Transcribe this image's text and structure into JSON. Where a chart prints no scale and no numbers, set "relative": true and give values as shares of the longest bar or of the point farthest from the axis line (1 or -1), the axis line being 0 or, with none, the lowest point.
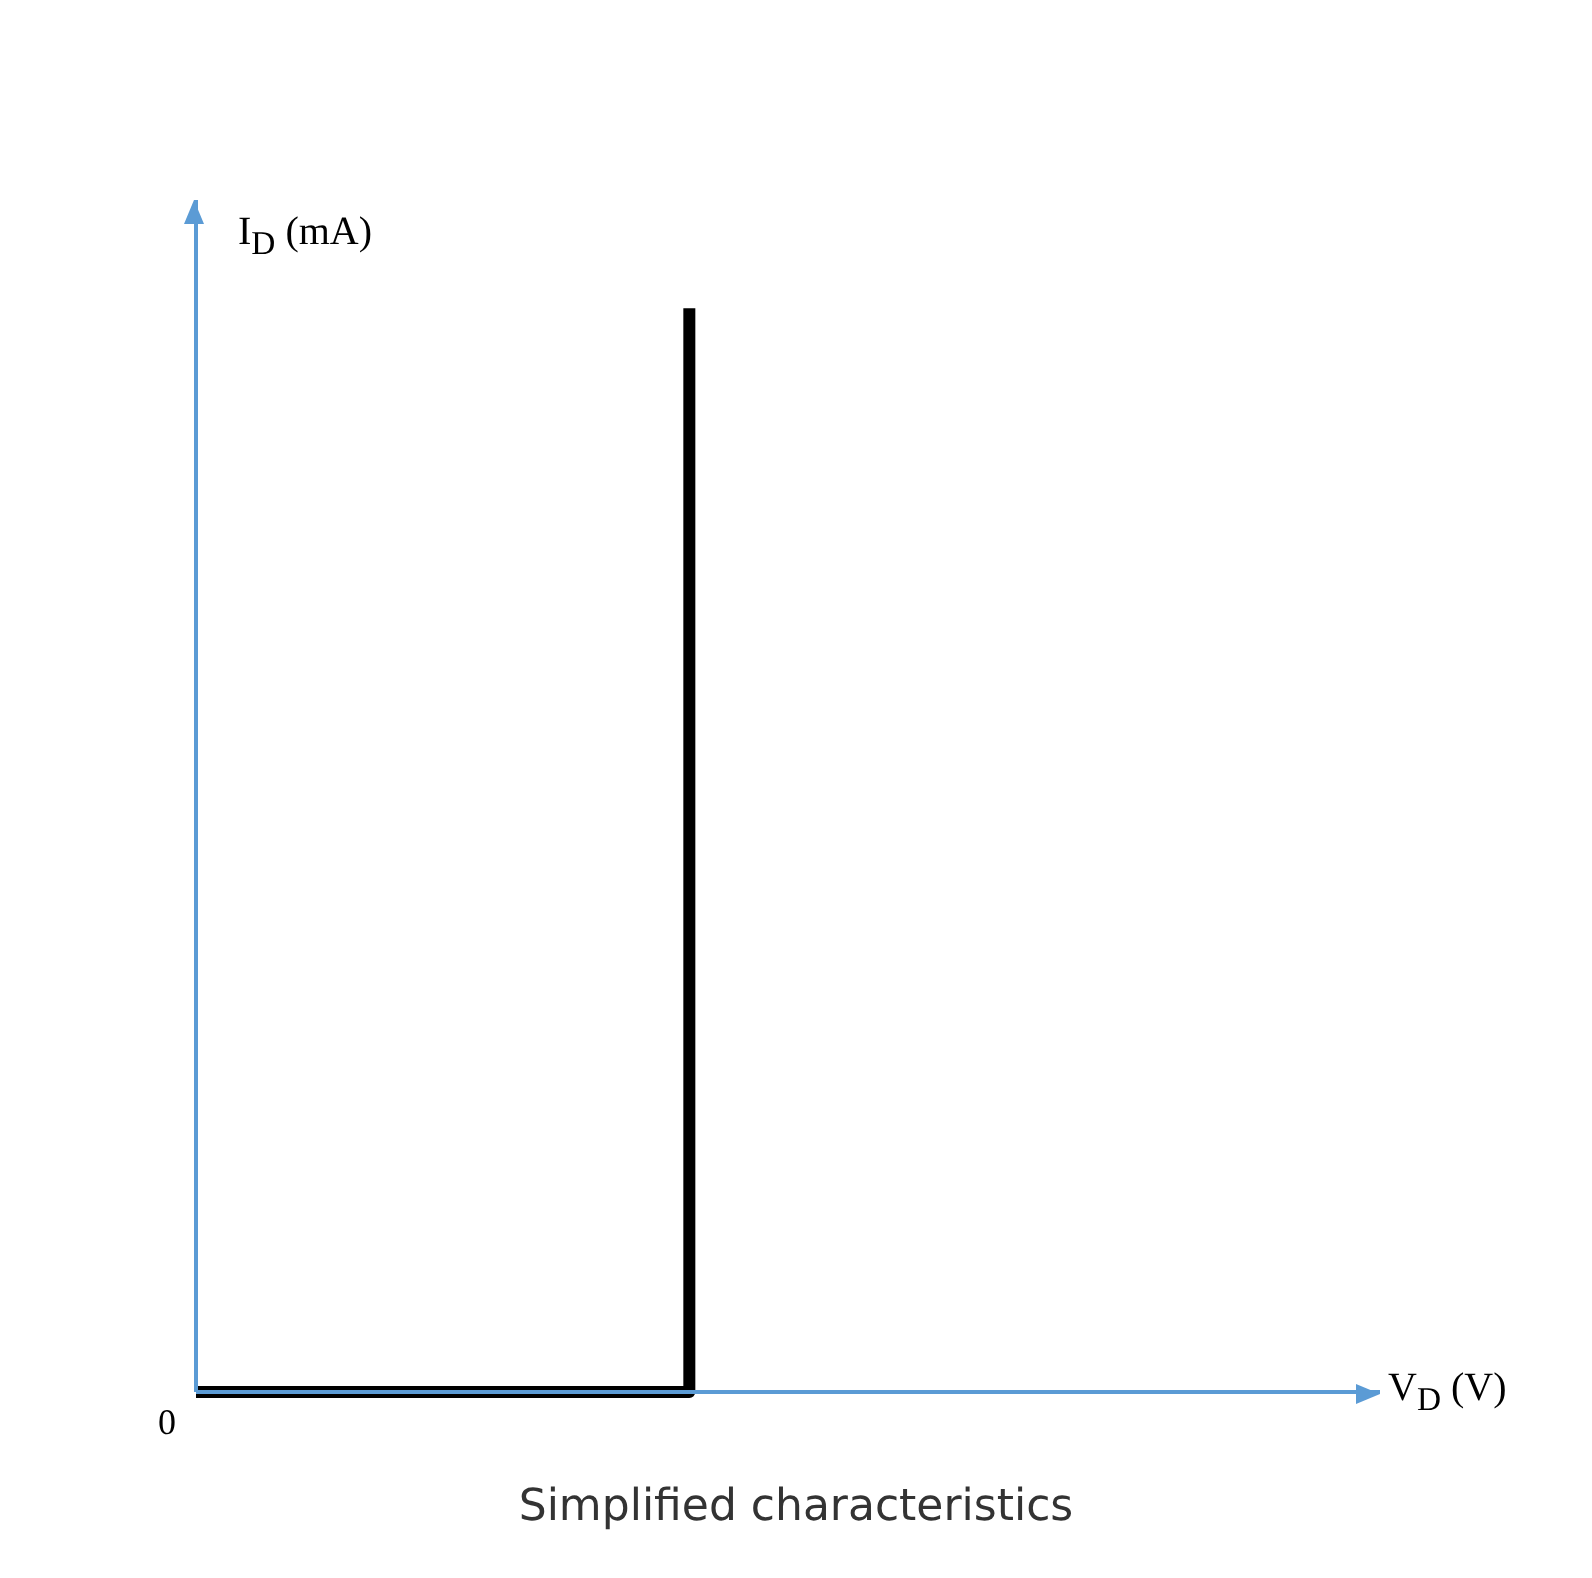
{
  "chart_data": {
    "type": "step",
    "title": "Simplified characteristics",
    "xlabel": "V$_{D}$ (V)",
    "ylabel": "I$_{D}$ (mA)",
    "relative": true,
    "annotations": [
      "0"
    ],
    "categories": [
      null,
      null,
      null,
      null,
      null,
      null,
      null,
      null,
      null,
      null,
      null,
      null,
      null
    ],
    "series": [
      {
        "color": "#000000",
        "values": [
          0,
          0,
          0,
          0,
          0,
          1,
          null,
          null,
          null,
          null,
          null,
          null,
          null
        ]
      }
    ]
  }
}
